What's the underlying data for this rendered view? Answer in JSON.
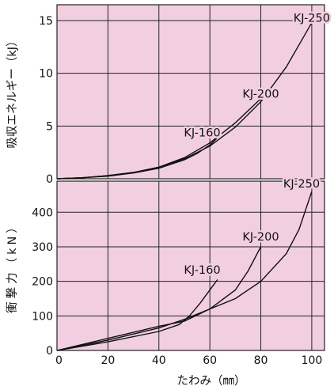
{
  "chart_data": [
    {
      "type": "line",
      "panel": "top",
      "ylabel": "吸収エネルギー（kJ）",
      "xlim": [
        0,
        105
      ],
      "ylim": [
        0,
        16.5
      ],
      "xticks": [
        0,
        20,
        40,
        60,
        80,
        100
      ],
      "yticks": [
        0,
        5,
        10,
        15
      ],
      "ytick_labels": [
        "0",
        "5",
        "10",
        "15"
      ],
      "grid": true,
      "series": [
        {
          "name": "KJ-160",
          "x": [
            0,
            10,
            20,
            30,
            40,
            50,
            55,
            60,
            63
          ],
          "y": [
            0,
            0.1,
            0.25,
            0.55,
            1.0,
            1.8,
            2.4,
            3.2,
            3.9
          ]
        },
        {
          "name": "KJ-200",
          "x": [
            0,
            10,
            20,
            30,
            40,
            50,
            60,
            70,
            80
          ],
          "y": [
            0,
            0.1,
            0.3,
            0.6,
            1.1,
            2.0,
            3.4,
            5.3,
            7.6
          ]
        },
        {
          "name": "KJ-250",
          "x": [
            0,
            10,
            20,
            30,
            40,
            50,
            60,
            70,
            80,
            90,
            100
          ],
          "y": [
            0,
            0.1,
            0.3,
            0.6,
            1.1,
            1.9,
            3.1,
            4.9,
            7.3,
            10.6,
            14.8
          ]
        }
      ],
      "labels": [
        {
          "text": "KJ-160",
          "x": 57,
          "y": 4.0
        },
        {
          "text": "KJ-200",
          "x": 80,
          "y": 7.7
        },
        {
          "text": "KJ-250",
          "x": 100,
          "y": 14.9
        }
      ]
    },
    {
      "type": "line",
      "panel": "bottom",
      "xlabel": "たわみ（㎜）",
      "ylabel": "衝撃力（kN）",
      "xlim": [
        0,
        105
      ],
      "ylim": [
        0,
        490
      ],
      "xticks": [
        0,
        20,
        40,
        60,
        80,
        100
      ],
      "xtick_labels": [
        "0",
        "20",
        "40",
        "60",
        "80",
        "100"
      ],
      "yticks": [
        0,
        100,
        200,
        300,
        400
      ],
      "ytick_labels": [
        "0",
        "100",
        "200",
        "300",
        "400"
      ],
      "grid": true,
      "series": [
        {
          "name": "KJ-160",
          "x": [
            0,
            20,
            40,
            48,
            52,
            56,
            60,
            63
          ],
          "y": [
            0,
            25,
            55,
            75,
            100,
            135,
            175,
            205
          ]
        },
        {
          "name": "KJ-200",
          "x": [
            0,
            20,
            40,
            50,
            60,
            70,
            75,
            80
          ],
          "y": [
            0,
            30,
            65,
            90,
            120,
            175,
            230,
            300
          ]
        },
        {
          "name": "KJ-250",
          "x": [
            0,
            20,
            40,
            50,
            60,
            70,
            80,
            90,
            95,
            100
          ],
          "y": [
            0,
            35,
            70,
            85,
            120,
            150,
            200,
            280,
            350,
            460
          ]
        }
      ],
      "labels": [
        {
          "text": "KJ-160",
          "x": 57,
          "y": 222
        },
        {
          "text": "KJ-200",
          "x": 80,
          "y": 318
        },
        {
          "text": "KJ-250",
          "x": 96,
          "y": 472
        }
      ]
    }
  ]
}
